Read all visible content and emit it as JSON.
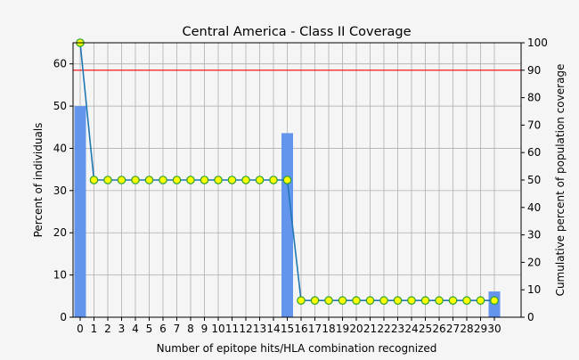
{
  "chart_data": {
    "type": "bar",
    "title": "Central America - Class II Coverage",
    "xlabel": "Number of epitope hits/HLA combination recognized",
    "ylabel": "Percent of individuals",
    "y2label": "Cumulative percent of population coverage",
    "categories": [
      "0",
      "1",
      "2",
      "3",
      "4",
      "5",
      "6",
      "7",
      "8",
      "9",
      "10",
      "11",
      "12",
      "13",
      "14",
      "15",
      "16",
      "17",
      "18",
      "19",
      "20",
      "21",
      "22",
      "23",
      "24",
      "25",
      "26",
      "27",
      "28",
      "29",
      "30"
    ],
    "bar_values": [
      50.0,
      0,
      0,
      0,
      0,
      0,
      0,
      0,
      0,
      0,
      0,
      0,
      0,
      0,
      0,
      43.6,
      0,
      0,
      0,
      0,
      0,
      0,
      0,
      0,
      0,
      0,
      0,
      0,
      0,
      0,
      6.1
    ],
    "cumulative_values": [
      100,
      50,
      50,
      50,
      50,
      50,
      50,
      50,
      50,
      50,
      50,
      50,
      50,
      50,
      50,
      50,
      6.1,
      6.1,
      6.1,
      6.1,
      6.1,
      6.1,
      6.1,
      6.1,
      6.1,
      6.1,
      6.1,
      6.1,
      6.1,
      6.1,
      6.1
    ],
    "reference_line_y2": 90,
    "ylim": [
      0,
      65
    ],
    "y2lim": [
      0,
      100
    ],
    "yticks": [
      0,
      10,
      20,
      30,
      40,
      50,
      60
    ],
    "y2ticks": [
      0,
      10,
      20,
      30,
      40,
      50,
      60,
      70,
      80,
      90,
      100
    ],
    "grid": true,
    "colors": {
      "bar": "#6495ed",
      "line": "#1f77b4",
      "marker_fill": "#ffff00",
      "marker_edge": "#2ca02c",
      "reference_line": "#ff0000",
      "grid": "#b0b0b0"
    }
  }
}
